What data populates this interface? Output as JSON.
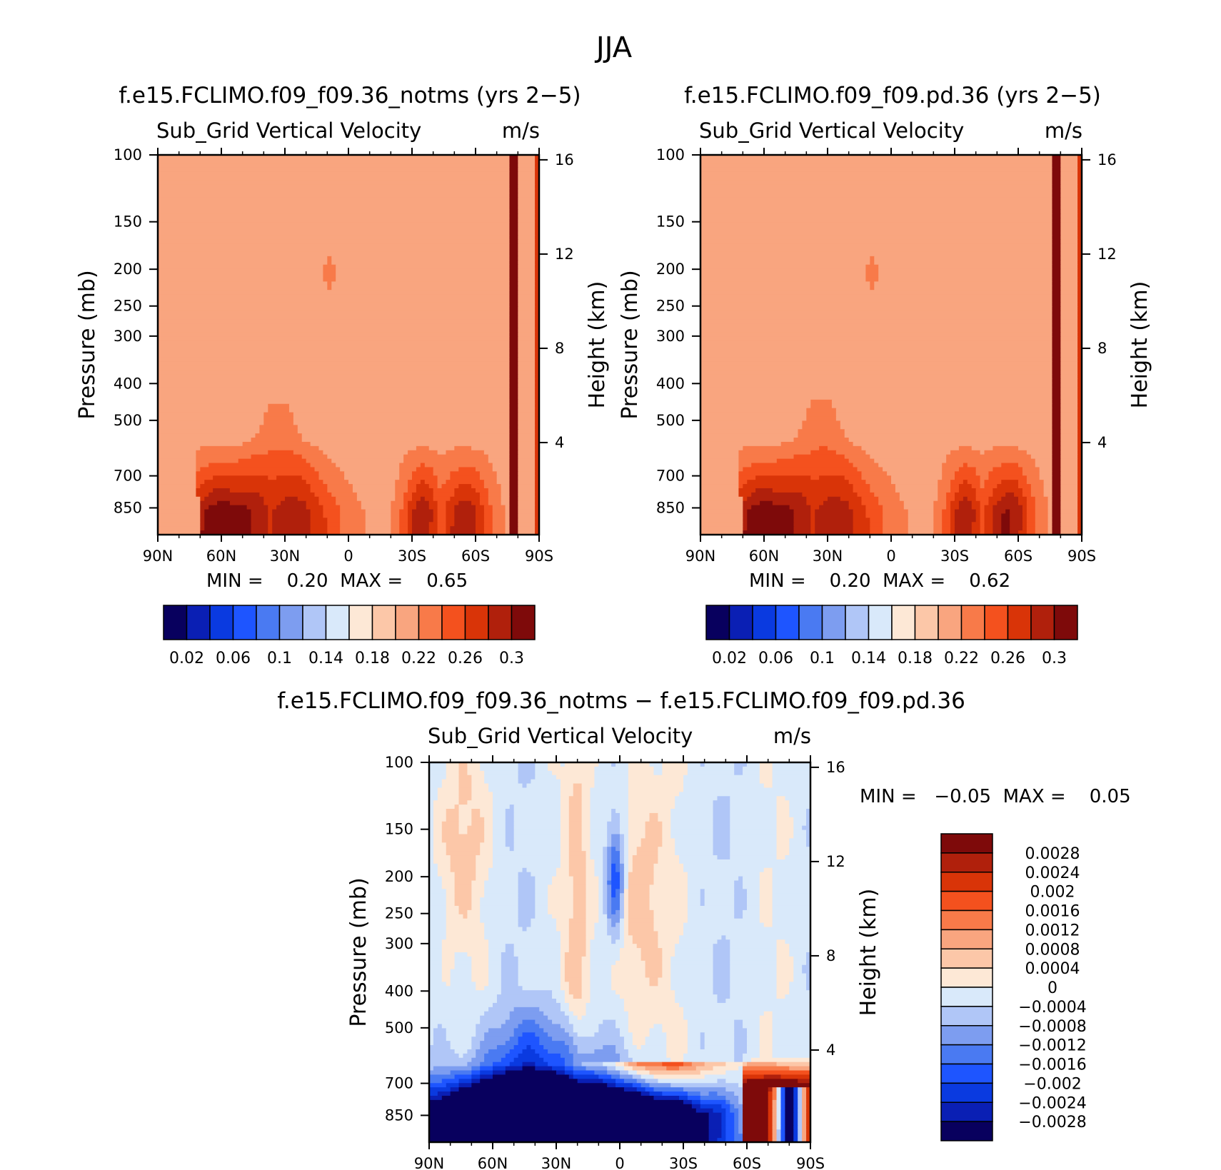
{
  "figure_title": "JJA",
  "levels": [
    0.02,
    0.04,
    0.06,
    0.08,
    0.1,
    0.12,
    0.14,
    0.16,
    0.18,
    0.2,
    0.22,
    0.24,
    0.26,
    0.28,
    0.3
  ],
  "level_colors": [
    "#08005e",
    "#0a1fb4",
    "#0a3ae0",
    "#1e55ff",
    "#4a7af2",
    "#7d9df0",
    "#b0c6f7",
    "#d9e9fa",
    "#fde8d6",
    "#fcc7a8",
    "#f9a57f",
    "#f87a49",
    "#f4511e",
    "#d93408",
    "#b0200c",
    "#7e0a0a"
  ],
  "diff_levels": [
    -0.0028,
    -0.0024,
    -0.002,
    -0.0016,
    -0.0012,
    -0.0008,
    -0.0004,
    0,
    0.0004,
    0.0008,
    0.0012,
    0.0016,
    0.002,
    0.0024,
    0.0028
  ],
  "panels": [
    {
      "title": "f.e15.FCLIMO.f09_f09.36_notms (yrs 2−5)",
      "subtitle": "Sub_Grid Vertical Velocity",
      "units": "m/s",
      "ylabel": "Pressure (mb)",
      "y2label": "Height (km)",
      "minmax": "MIN =    0.20  MAX =    0.65",
      "colorbar_labels": [
        "0.02",
        "0.06",
        "0.1",
        "0.14",
        "0.18",
        "0.22",
        "0.26",
        "0.3"
      ]
    },
    {
      "title": "f.e15.FCLIMO.f09_f09.pd.36 (yrs 2−5)",
      "subtitle": "Sub_Grid Vertical Velocity",
      "units": "m/s",
      "ylabel": "Pressure (mb)",
      "y2label": "Height (km)",
      "minmax": "MIN =    0.20  MAX =    0.62",
      "colorbar_labels": [
        "0.02",
        "0.06",
        "0.1",
        "0.14",
        "0.18",
        "0.22",
        "0.26",
        "0.3"
      ]
    },
    {
      "title": "f.e15.FCLIMO.f09_f09.36_notms − f.e15.FCLIMO.f09_f09.pd.36",
      "subtitle": "Sub_Grid Vertical Velocity",
      "units": "m/s",
      "ylabel": "Pressure (mb)",
      "y2label": "Height (km)",
      "minmax": "MIN =   −0.05  MAX =    0.05",
      "colorbar_labels": [
        "0.0028",
        "0.0024",
        "0.002",
        "0.0016",
        "0.0012",
        "0.0008",
        "0.0004",
        "0",
        "−0.0004",
        "−0.0008",
        "−0.0012",
        "−0.0016",
        "−0.002",
        "−0.0024",
        "−0.0028"
      ]
    }
  ],
  "chart_data": [
    {
      "type": "heatmap",
      "title": "f.e15.FCLIMO.f09_f09.36_notms (yrs 2−5)",
      "subtitle": "Sub_Grid Vertical Velocity",
      "units": "m/s",
      "x_ticks": [
        "90N",
        "60N",
        "30N",
        "0",
        "30S",
        "60S",
        "90S"
      ],
      "y_ticks": [
        "100",
        "150",
        "200",
        "250",
        "300",
        "400",
        "500",
        "700",
        "850"
      ],
      "y2_ticks": [
        "4",
        "8",
        "12",
        "16"
      ],
      "xlabel": "",
      "ylabel": "Pressure (mb)",
      "y2label": "Height (km)",
      "xlim": [
        90,
        -90
      ],
      "ylim_mb": [
        100,
        1000
      ],
      "min": 0.2,
      "max": 0.65,
      "bottom_peaks": [
        [
          -64,
          -44,
          0.29
        ],
        [
          -42,
          -28,
          0.3
        ],
        [
          10,
          40,
          0.26
        ],
        [
          42,
          78,
          0.3
        ]
      ],
      "plume": {
        "lat": 33,
        "top_mb": 450,
        "width_deg": 4
      }
    },
    {
      "type": "heatmap",
      "title": "f.e15.FCLIMO.f09_f09.pd.36 (yrs 2−5)",
      "subtitle": "Sub_Grid Vertical Velocity",
      "units": "m/s",
      "x_ticks": [
        "90N",
        "60N",
        "30N",
        "0",
        "30S",
        "60S",
        "90S"
      ],
      "y_ticks": [
        "100",
        "150",
        "200",
        "250",
        "300",
        "400",
        "500",
        "700",
        "850"
      ],
      "y2_ticks": [
        "4",
        "8",
        "12",
        "16"
      ],
      "xlabel": "",
      "ylabel": "Pressure (mb)",
      "y2label": "Height (km)",
      "xlim": [
        90,
        -90
      ],
      "ylim_mb": [
        100,
        1000
      ],
      "min": 0.2,
      "max": 0.62,
      "bottom_peaks": [
        [
          -64,
          -44,
          0.3
        ],
        [
          -42,
          -28,
          0.3
        ],
        [
          10,
          40,
          0.26
        ],
        [
          42,
          78,
          0.3
        ]
      ],
      "plume": {
        "lat": 33,
        "top_mb": 440,
        "width_deg": 4
      }
    },
    {
      "type": "heatmap",
      "title": "f.e15.FCLIMO.f09_f09.36_notms − f.e15.FCLIMO.f09_f09.pd.36",
      "subtitle": "Sub_Grid Vertical Velocity",
      "units": "m/s",
      "x_ticks": [
        "90N",
        "60N",
        "30N",
        "0",
        "30S",
        "60S",
        "90S"
      ],
      "y_ticks": [
        "100",
        "150",
        "200",
        "250",
        "300",
        "400",
        "500",
        "700",
        "850"
      ],
      "y2_ticks": [
        "4",
        "8",
        "12",
        "16"
      ],
      "xlabel": "",
      "ylabel": "Pressure (mb)",
      "y2label": "Height (km)",
      "xlim": [
        90,
        -90
      ],
      "ylim_mb": [
        100,
        1000
      ],
      "min": -0.05,
      "max": 0.05,
      "features": [
        {
          "region": "northern subtropics surface",
          "lat": [
            10,
            80
          ],
          "p_mb": [
            600,
            1000
          ],
          "value": -0.0028
        },
        {
          "region": "60S-90S surface",
          "lat": [
            -60,
            -90
          ],
          "p_mb": [
            630,
            1000
          ],
          "value": 0.0028
        }
      ]
    }
  ]
}
